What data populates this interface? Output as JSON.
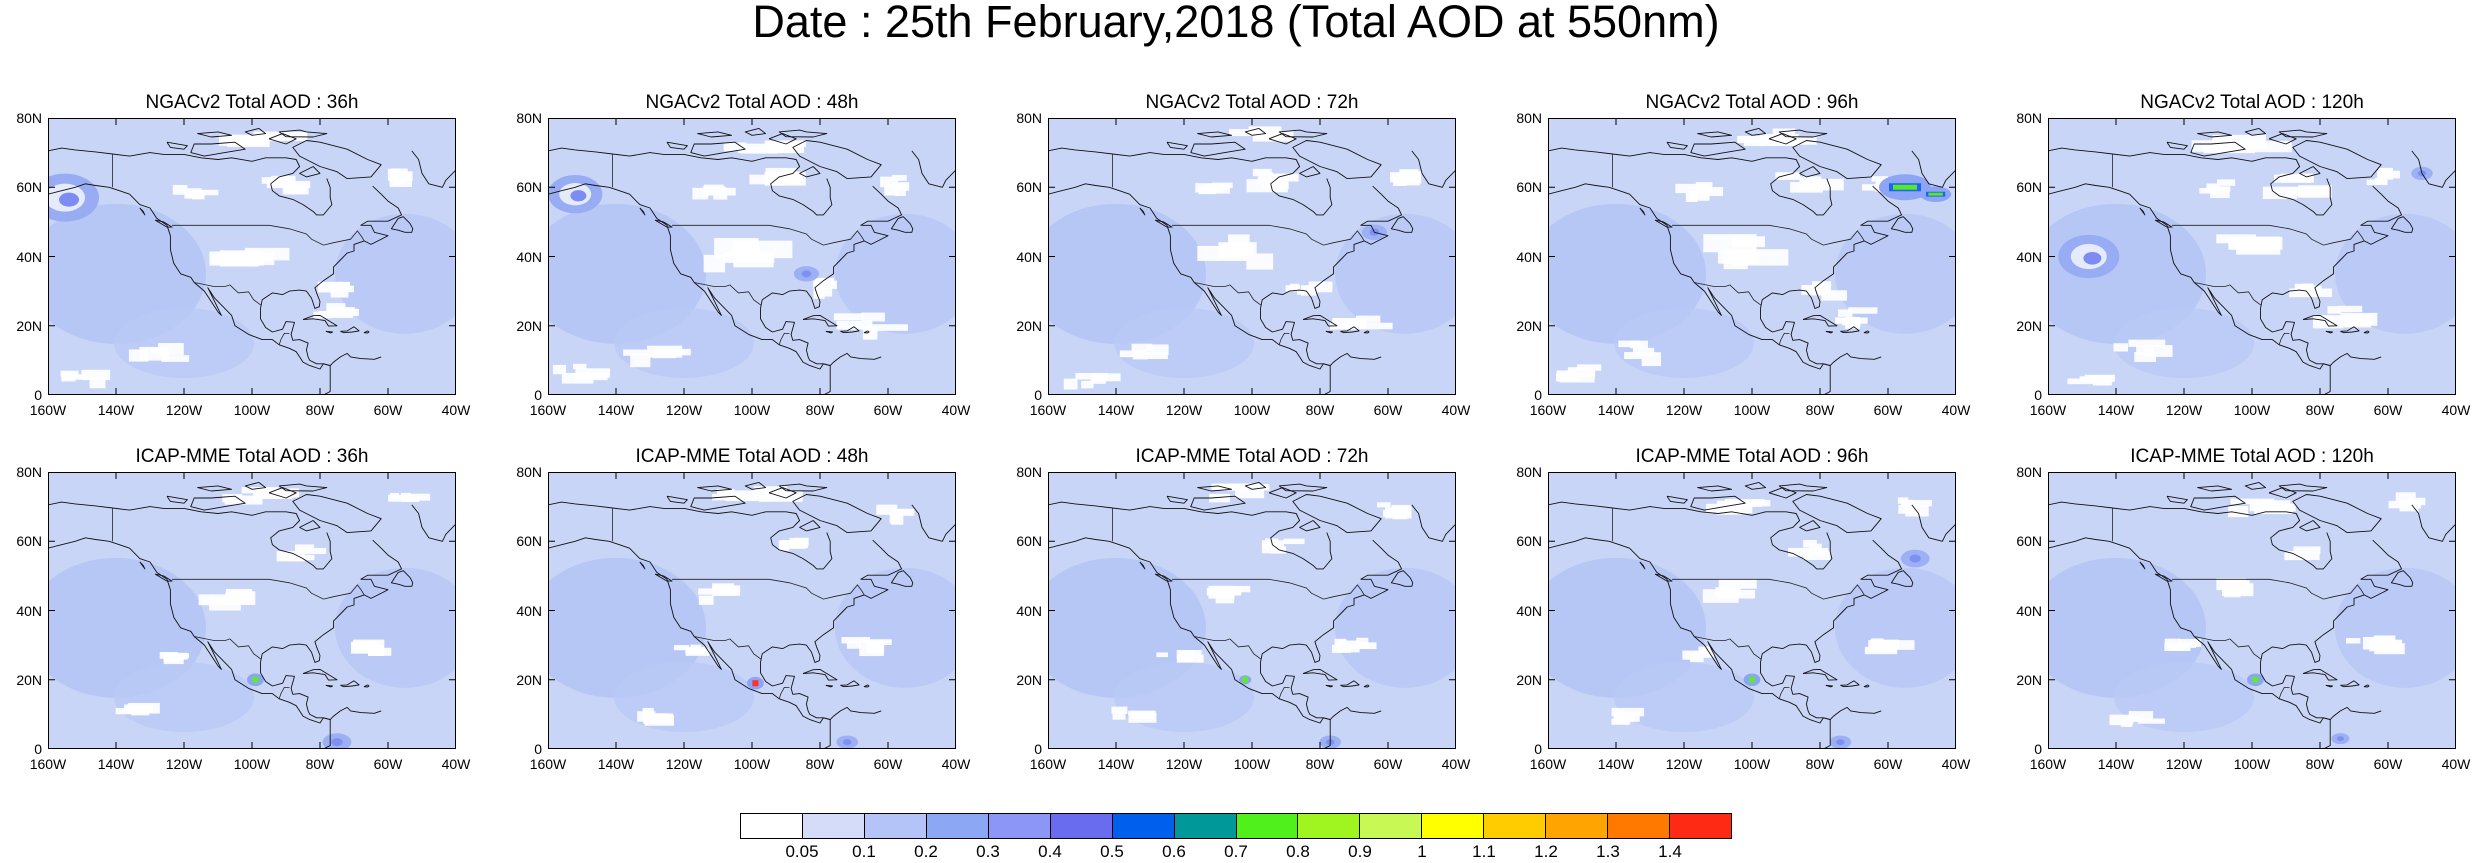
{
  "title": "Date : 25th February,2018 (Total AOD at 550nm)",
  "rows": [
    {
      "model": "NGACv2",
      "panels": [
        {
          "title": "NGACv2 Total AOD : 36h",
          "lead": "36h",
          "features": [
            {
              "type": "swirl",
              "lon": -155,
              "lat": 57,
              "r": 1.0
            }
          ]
        },
        {
          "title": "NGACv2 Total AOD : 48h",
          "lead": "48h",
          "features": [
            {
              "type": "swirl",
              "lon": -152,
              "lat": 58,
              "r": 0.8
            },
            {
              "type": "spot",
              "lon": -84,
              "lat": 35,
              "r": 0.7
            }
          ]
        },
        {
          "title": "NGACv2 Total AOD : 72h",
          "lead": "72h",
          "features": [
            {
              "type": "spot",
              "lon": -64,
              "lat": 47,
              "r": 0.7
            }
          ]
        },
        {
          "title": "NGACv2 Total AOD : 96h",
          "lead": "96h",
          "features": [
            {
              "type": "hotspot",
              "lon": -55,
              "lat": 60,
              "r": 1.0
            },
            {
              "type": "hotspot",
              "lon": -46,
              "lat": 58,
              "r": 0.6
            }
          ]
        },
        {
          "title": "NGACv2 Total AOD : 120h",
          "lead": "120h",
          "features": [
            {
              "type": "swirl",
              "lon": -148,
              "lat": 40,
              "r": 0.9
            },
            {
              "type": "spot",
              "lon": -50,
              "lat": 64,
              "r": 0.6
            }
          ]
        }
      ]
    },
    {
      "model": "ICAP-MME",
      "panels": [
        {
          "title": "ICAP-MME Total AOD : 36h",
          "lead": "36h",
          "features": [
            {
              "type": "green",
              "lon": -99,
              "lat": 20,
              "r": 0.7
            },
            {
              "type": "spot",
              "lon": -75,
              "lat": 2,
              "r": 0.8
            }
          ]
        },
        {
          "title": "ICAP-MME Total AOD : 48h",
          "lead": "48h",
          "features": [
            {
              "type": "red",
              "lon": -99,
              "lat": 19,
              "r": 0.7
            },
            {
              "type": "spot",
              "lon": -72,
              "lat": 2,
              "r": 0.6
            }
          ]
        },
        {
          "title": "ICAP-MME Total AOD : 72h",
          "lead": "72h",
          "features": [
            {
              "type": "green",
              "lon": -102,
              "lat": 20,
              "r": 0.5
            },
            {
              "type": "spot",
              "lon": -77,
              "lat": 2,
              "r": 0.6
            }
          ]
        },
        {
          "title": "ICAP-MME Total AOD : 96h",
          "lead": "96h",
          "features": [
            {
              "type": "green",
              "lon": -100,
              "lat": 20,
              "r": 0.7
            },
            {
              "type": "spot",
              "lon": -52,
              "lat": 55,
              "r": 0.8
            },
            {
              "type": "spot",
              "lon": -74,
              "lat": 2,
              "r": 0.6
            }
          ]
        },
        {
          "title": "ICAP-MME Total AOD : 120h",
          "lead": "120h",
          "features": [
            {
              "type": "green",
              "lon": -99,
              "lat": 20,
              "r": 0.7
            },
            {
              "type": "spot",
              "lon": -74,
              "lat": 3,
              "r": 0.5
            }
          ]
        }
      ]
    }
  ],
  "axes": {
    "lat_ticks": [
      "80N",
      "60N",
      "40N",
      "20N",
      "0"
    ],
    "lat_values": [
      80,
      60,
      40,
      20,
      0
    ],
    "lon_ticks": [
      "160W",
      "140W",
      "120W",
      "100W",
      "80W",
      "60W",
      "40W"
    ],
    "lon_values": [
      -160,
      -140,
      -120,
      -100,
      -80,
      -60,
      -40
    ],
    "lat_range": [
      0,
      80
    ],
    "lon_range": [
      -160,
      -40
    ]
  },
  "colorbar": {
    "colors": [
      "#ffffff",
      "#d4dcfa",
      "#b4c4f8",
      "#8ca8f4",
      "#8c96f6",
      "#6a6cf0",
      "#0060ee",
      "#009898",
      "#50f01c",
      "#a0f420",
      "#c8f854",
      "#ffff00",
      "#ffcc00",
      "#ffa400",
      "#ff7800",
      "#ff2a14"
    ],
    "labels": [
      "0.05",
      "0.1",
      "0.2",
      "0.3",
      "0.4",
      "0.5",
      "0.6",
      "0.7",
      "0.8",
      "0.9",
      "1",
      "1.1",
      "1.2",
      "1.3",
      "1.4"
    ]
  }
}
